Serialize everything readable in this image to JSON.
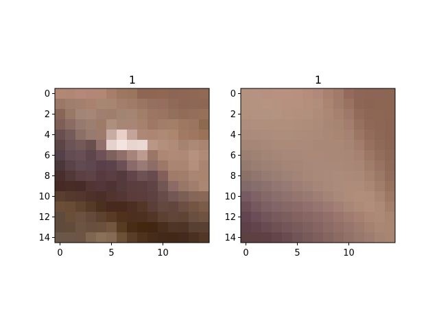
{
  "chart_data": [
    {
      "type": "heatmap",
      "title": "1",
      "xlabel": "",
      "ylabel": "",
      "x_ticks": [
        "0",
        "5",
        "10"
      ],
      "y_ticks": [
        "0",
        "2",
        "4",
        "6",
        "8",
        "10",
        "12",
        "14"
      ],
      "grid": false,
      "pixels": [
        [
          "#b08874",
          "#b08772",
          "#b4897a",
          "#b38777",
          "#b28774",
          "#a67e6a",
          "#9d7860",
          "#9a765f",
          "#8d6654",
          "#8e6652",
          "#8f6753",
          "#8c6654",
          "#8d6654",
          "#8f6853",
          "#906a55"
        ],
        [
          "#9a7766",
          "#a07e6e",
          "#a3806e",
          "#a9826d",
          "#a78672",
          "#a78671",
          "#a37e6c",
          "#a07b67",
          "#9a7561",
          "#956f5f",
          "#966e5f",
          "#8f6a58",
          "#8d6655",
          "#8e6856",
          "#8e6754"
        ],
        [
          "#886657",
          "#9a7868",
          "#a28577",
          "#a58677",
          "#a07f70",
          "#a07e6c",
          "#a28473",
          "#a48472",
          "#a07e68",
          "#9c7663",
          "#9a7460",
          "#936f5d",
          "#936c58",
          "#946e5a",
          "#967059"
        ],
        [
          "#7d5f58",
          "#8a6c62",
          "#967a6f",
          "#9d7f71",
          "#9e7a68",
          "#ad8f7f",
          "#a78676",
          "#a88574",
          "#a6816d",
          "#9f7765",
          "#a27e6a",
          "#a47f68",
          "#9e7860",
          "#9b755f",
          "#8d6a4f"
        ],
        [
          "#6a4f4f",
          "#755b5a",
          "#8c7068",
          "#987a70",
          "#9c7a6c",
          "#c8aca4",
          "#e8d0c9",
          "#c3a39a",
          "#ad8876",
          "#ac8673",
          "#ae8975",
          "#ad8670",
          "#a27a63",
          "#9f765f",
          "#9a7258"
        ],
        [
          "#5d4546",
          "#6c5355",
          "#735a59",
          "#6a4f4f",
          "#916f6b",
          "#e6d2cc",
          "#f3e4df",
          "#e9d5d0",
          "#ead8d3",
          "#b99686",
          "#b38f7e",
          "#b08b78",
          "#a68270",
          "#ab8977",
          "#a98570"
        ],
        [
          "#544048",
          "#624d53",
          "#674f55",
          "#5e454c",
          "#6d5156",
          "#7e605d",
          "#906e69",
          "#a7847b",
          "#bd9a8f",
          "#9a7667",
          "#ad8774",
          "#b08a76",
          "#ae8977",
          "#b4927f",
          "#ae8a77"
        ],
        [
          "#4b363a",
          "#5a4347",
          "#624a51",
          "#5f4752",
          "#5b3f48",
          "#5c424b",
          "#6b5055",
          "#8a6b69",
          "#9a7a74",
          "#8e6d66",
          "#9d7868",
          "#a98673",
          "#aa8672",
          "#b38f7c",
          "#aa8472"
        ],
        [
          "#482e2c",
          "#533838",
          "#5b3f42",
          "#5e4344",
          "#573a40",
          "#5b3e43",
          "#553a3d",
          "#62454a",
          "#6e5355",
          "#674b4e",
          "#835f5a",
          "#a07b6a",
          "#a27d6c",
          "#a98573",
          "#ab8470"
        ],
        [
          "#472a26",
          "#482d27",
          "#462b29",
          "#523435",
          "#533639",
          "#4e3333",
          "#553a3b",
          "#5a3e3f",
          "#5a3e40",
          "#5f4446",
          "#725654",
          "#8c6b66",
          "#987668",
          "#a07d6c",
          "#ab8673"
        ],
        [
          "#5a3e2f",
          "#54392c",
          "#53372e",
          "#4e3229",
          "#4a2e28",
          "#52332e",
          "#543634",
          "#5b3c3a",
          "#5b3d3c",
          "#5d4140",
          "#674b48",
          "#725755",
          "#7b5e54",
          "#866656",
          "#896857"
        ],
        [
          "#6b4e37",
          "#6a4c36",
          "#5f442f",
          "#563a28",
          "#4c301f",
          "#472a1d",
          "#48291c",
          "#4d2e23",
          "#543627",
          "#5a3e37",
          "#63483f",
          "#62463d",
          "#6c4f42",
          "#735544",
          "#7a5c48"
        ],
        [
          "#604a3b",
          "#6a4f38",
          "#6d5140",
          "#65493a",
          "#5d4230",
          "#583b25",
          "#4e321e",
          "#4c2f1c",
          "#4e3020",
          "#523526",
          "#5c4032",
          "#604538",
          "#5f4335",
          "#6a4e3f",
          "#6f5240"
        ],
        [
          "#5f4a3e",
          "#634b3a",
          "#6c5442",
          "#694f3e",
          "#6b503e",
          "#72563e",
          "#573b22",
          "#482c16",
          "#432711",
          "#412611",
          "#492e1d",
          "#4e3525",
          "#4e3425",
          "#574032",
          "#5a4032"
        ],
        [
          "#6b5748",
          "#6b5648",
          "#6c5544",
          "#7f6650",
          "#8b7058",
          "#856b53",
          "#6c5137",
          "#593d24",
          "#4e321b",
          "#472c19",
          "#43291a",
          "#432818",
          "#44291d",
          "#49301f",
          "#523626"
        ]
      ]
    },
    {
      "type": "heatmap",
      "title": "1",
      "xlabel": "",
      "ylabel": "",
      "x_ticks": [
        "0",
        "5",
        "10"
      ],
      "y_ticks": [
        "0",
        "2",
        "4",
        "6",
        "8",
        "10",
        "12",
        "14"
      ],
      "grid": false,
      "pixels": [
        [
          "#b49280",
          "#b59282",
          "#b6917f",
          "#b89180",
          "#b8917f",
          "#b8907e",
          "#b68d7b",
          "#b1897a",
          "#a9816f",
          "#a17a6a",
          "#936a5c",
          "#8c6656",
          "#8c6554",
          "#8d6556",
          "#8b6655"
        ],
        [
          "#b49280",
          "#b59381",
          "#b79481",
          "#b69280",
          "#b7917f",
          "#b6917f",
          "#b38f7c",
          "#b18d7b",
          "#ab8572",
          "#a27c6a",
          "#9a7262",
          "#8e6655",
          "#8c6454",
          "#8d6553",
          "#8d6553"
        ],
        [
          "#b2917f",
          "#b49281",
          "#b29381",
          "#b49380",
          "#b4917f",
          "#b3907e",
          "#b1907d",
          "#af8c79",
          "#ab8775",
          "#a68170",
          "#9e7868",
          "#926b5b",
          "#8d6656",
          "#8e6654",
          "#8d6553"
        ],
        [
          "#ae8d7c",
          "#b08f7e",
          "#b08f7d",
          "#b08f7d",
          "#b18f7d",
          "#b08e7c",
          "#ae8d7b",
          "#ac8b79",
          "#a98776",
          "#a78573",
          "#a37d6d",
          "#98705f",
          "#906858",
          "#8d6656",
          "#8b6453"
        ],
        [
          "#aa8a7b",
          "#ac8b7b",
          "#ac8c7c",
          "#ae8d7d",
          "#ad8d7c",
          "#ad8c7b",
          "#ad8b7a",
          "#ab8a79",
          "#aa8876",
          "#a98574",
          "#a68272",
          "#9c7665",
          "#936c5c",
          "#8e6857",
          "#8b6453"
        ],
        [
          "#a58676",
          "#a68777",
          "#a88878",
          "#aa8a79",
          "#ab8a7a",
          "#ab8a79",
          "#ab8a79",
          "#aa8878",
          "#aa8877",
          "#aa8876",
          "#a78574",
          "#a27d6c",
          "#977060",
          "#906a59",
          "#8c6655"
        ],
        [
          "#9d7f72",
          "#a08274",
          "#a38576",
          "#a68777",
          "#a88878",
          "#a88878",
          "#aa8978",
          "#aa8978",
          "#a98877",
          "#a98877",
          "#a98776",
          "#a58271",
          "#9c7766",
          "#946e5d",
          "#8e6857"
        ],
        [
          "#957a70",
          "#9a7e72",
          "#9e8175",
          "#a18376",
          "#a48576",
          "#a68677",
          "#a88878",
          "#a98979",
          "#a98978",
          "#aa8978",
          "#aa8877",
          "#a88675",
          "#a07c6b",
          "#987262",
          "#906a59"
        ],
        [
          "#8c7169",
          "#917670",
          "#967b73",
          "#9a7e74",
          "#9f8276",
          "#a38577",
          "#a68778",
          "#a98979",
          "#aa8a7a",
          "#ab8b7a",
          "#ac8a79",
          "#ab8978",
          "#a58170",
          "#9c7866",
          "#936d5c"
        ],
        [
          "#82696a",
          "#876d6c",
          "#8d716e",
          "#927671",
          "#977a73",
          "#9c7e75",
          "#a18276",
          "#a58677",
          "#a98979",
          "#ab8b7b",
          "#ad8c7b",
          "#ae8c7a",
          "#aa8775",
          "#a17e6b",
          "#97725f"
        ],
        [
          "#765c62",
          "#7e6266",
          "#856969",
          "#8a6e6c",
          "#8f716d",
          "#94766f",
          "#997a72",
          "#9f7f75",
          "#a48477",
          "#a98979",
          "#ad8c7a",
          "#b08e7b",
          "#af8d7a",
          "#a88572",
          "#9c7865"
        ],
        [
          "#6b4e56",
          "#74595e",
          "#7c6064",
          "#826566",
          "#876867",
          "#8b6b69",
          "#906f6c",
          "#967470",
          "#9c7a73",
          "#a28076",
          "#a88678",
          "#ae8b79",
          "#b08e7b",
          "#ad8a77",
          "#a37f6b"
        ],
        [
          "#634552",
          "#6a4d56",
          "#72555b",
          "#785a5d",
          "#7d5e5f",
          "#836260",
          "#886663",
          "#8d6a66",
          "#936f69",
          "#99756d",
          "#9f7b70",
          "#a68173",
          "#ab8775",
          "#ad8a77",
          "#a88571"
        ],
        [
          "#5e4148",
          "#62444c",
          "#684a51",
          "#6f5055",
          "#745558",
          "#7a5b5b",
          "#80605e",
          "#866461",
          "#8c6a65",
          "#927068",
          "#98756c",
          "#9e7b6f",
          "#a58172",
          "#aa8774",
          "#a98672"
        ],
        [
          "#5c4042",
          "#5e4043",
          "#5f4145",
          "#63454a",
          "#6a4c50",
          "#715456",
          "#775a59",
          "#7e5f5d",
          "#846560",
          "#8b6b64",
          "#927168",
          "#98776c",
          "#9e7d70",
          "#a48373",
          "#a78572"
        ]
      ]
    }
  ]
}
